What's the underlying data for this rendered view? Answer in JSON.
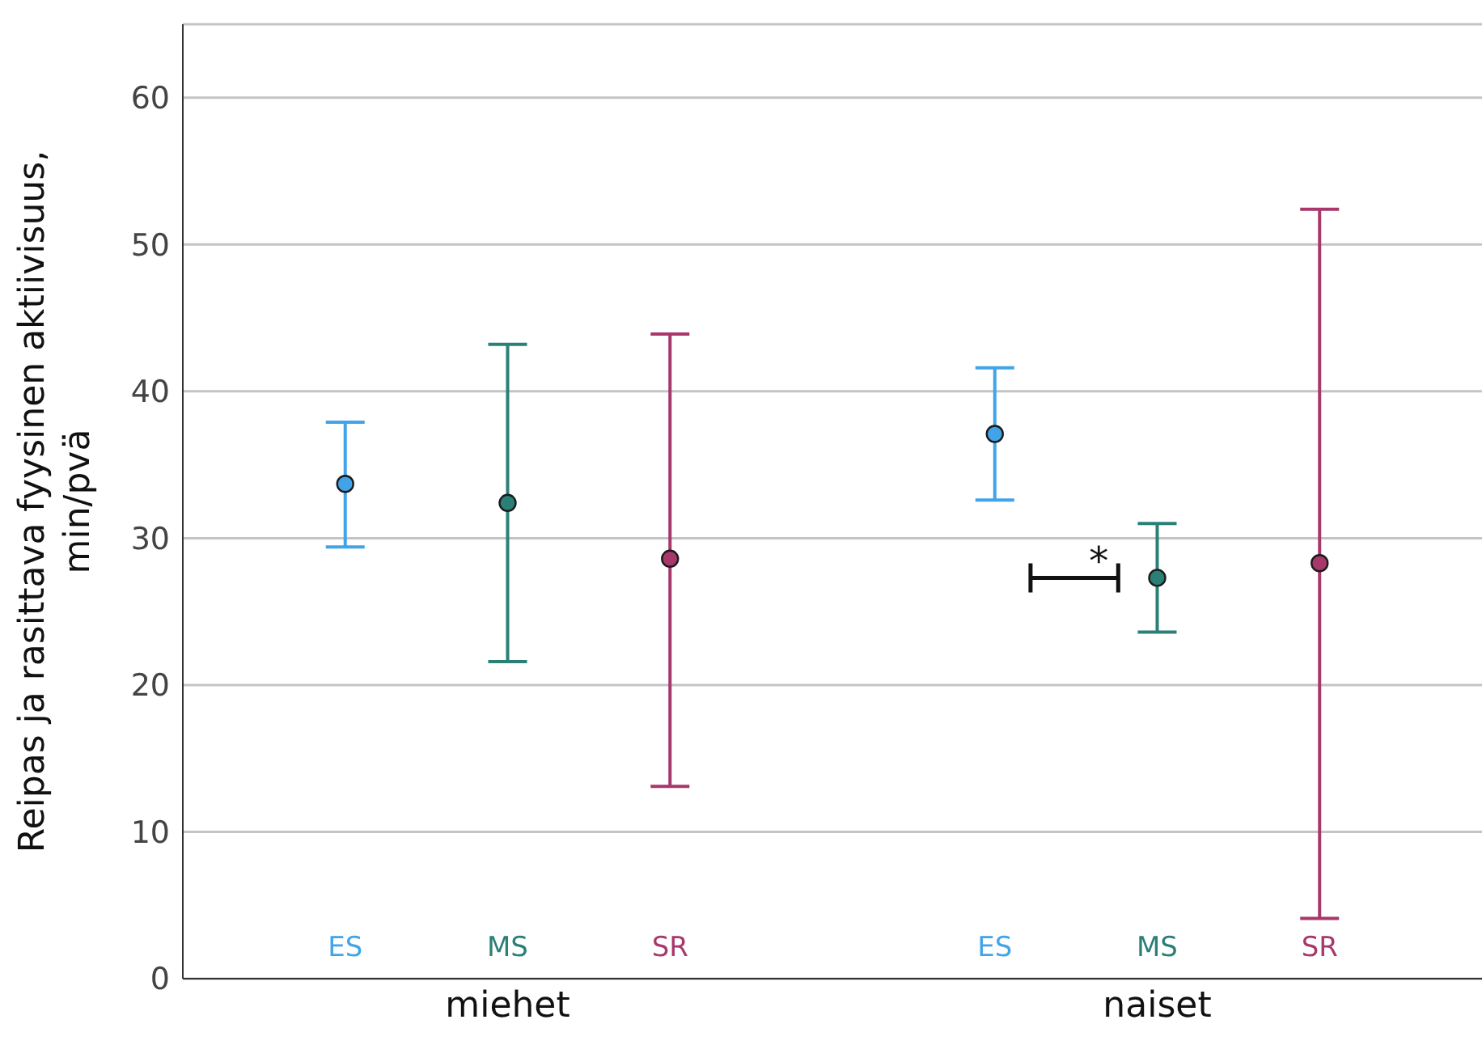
{
  "chart_data": {
    "type": "scatter",
    "ylabel": "Reipas ja rasittava fyysinen aktiivisuus, min/pvä",
    "categories": [
      "miehet",
      "naiset"
    ],
    "series": [
      {
        "name": "ES",
        "color": "#41a4e8",
        "values": [
          33.7,
          37.1
        ],
        "errors": [
          [
            29.4,
            37.9
          ],
          [
            32.6,
            41.6
          ]
        ]
      },
      {
        "name": "MS",
        "color": "#2a7f76",
        "values": [
          32.4,
          27.3
        ],
        "errors": [
          [
            21.6,
            43.2
          ],
          [
            23.6,
            31.0
          ]
        ]
      },
      {
        "name": "SR",
        "color": "#a8386b",
        "values": [
          28.6,
          28.3
        ],
        "errors": [
          [
            13.1,
            43.9
          ],
          [
            4.1,
            52.4
          ]
        ]
      }
    ],
    "ylim": [
      0,
      65
    ],
    "yticks": [
      0,
      10,
      20,
      30,
      40,
      50,
      60
    ],
    "grid": "y",
    "marker": "circle",
    "annotations": [
      "*"
    ]
  }
}
